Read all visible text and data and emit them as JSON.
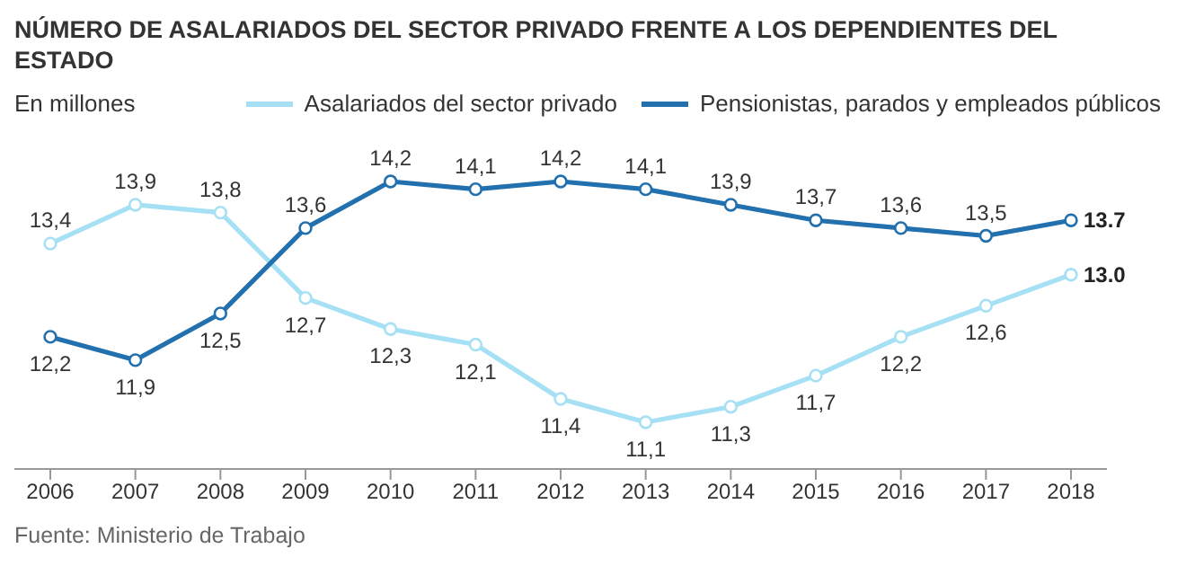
{
  "chart_data": {
    "type": "line",
    "title": "NÚMERO DE ASALARIADOS DEL SECTOR PRIVADO FRENTE A LOS DEPENDIENTES DEL ESTADO",
    "ylabel": "En millones",
    "categories": [
      "2006",
      "2007",
      "2008",
      "2009",
      "2010",
      "2011",
      "2012",
      "2013",
      "2014",
      "2015",
      "2016",
      "2017",
      "2018"
    ],
    "series": [
      {
        "name": "Asalariados del sector privado",
        "color": "#a6e0f4",
        "values": [
          13.4,
          13.9,
          13.8,
          12.7,
          12.3,
          12.1,
          11.4,
          11.1,
          11.3,
          11.7,
          12.2,
          12.6,
          13.0
        ],
        "value_labels": [
          "13,4",
          "13,9",
          "13,8",
          "12,7",
          "12,3",
          "12,1",
          "11,4",
          "11,1",
          "11,3",
          "11,7",
          "12,2",
          "12,6",
          "13.0"
        ]
      },
      {
        "name": "Pensionistas, parados y empleados públicos",
        "color": "#2270ad",
        "values": [
          12.2,
          11.9,
          12.5,
          13.6,
          14.2,
          14.1,
          14.2,
          14.1,
          13.9,
          13.7,
          13.6,
          13.5,
          13.7
        ],
        "value_labels": [
          "12,2",
          "11,9",
          "12,5",
          "13,6",
          "14,2",
          "14,1",
          "14,2",
          "14,1",
          "13,9",
          "13,7",
          "13,6",
          "13,5",
          "13.7"
        ]
      }
    ],
    "tick_labels": "x",
    "legend": "top",
    "marker": "circle",
    "line_style": "solid",
    "annotations": [
      "Fuente: Ministerio de Trabajo"
    ]
  }
}
